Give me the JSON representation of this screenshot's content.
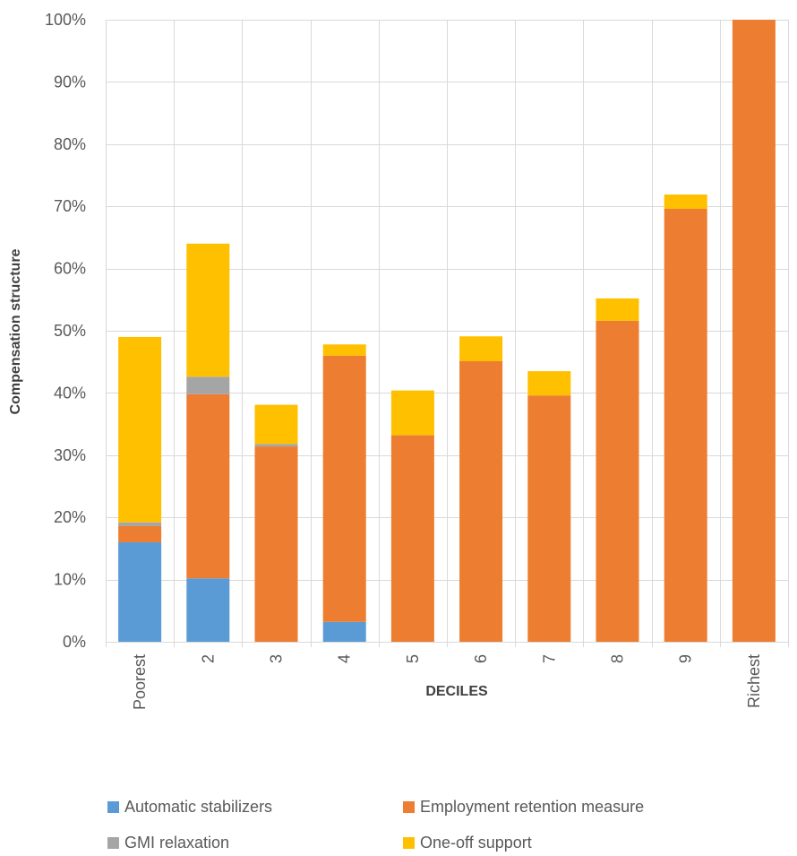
{
  "chart_data": {
    "type": "bar",
    "stacked": true,
    "title": "",
    "xlabel": "DECILES",
    "ylabel": "Compensation structure",
    "ylim": [
      0,
      100
    ],
    "y_ticks": [
      "0%",
      "10%",
      "20%",
      "30%",
      "40%",
      "50%",
      "60%",
      "70%",
      "80%",
      "90%",
      "100%"
    ],
    "categories": [
      "Poorest",
      "2",
      "3",
      "4",
      "5",
      "6",
      "7",
      "8",
      "9",
      "Richest"
    ],
    "grid": true,
    "legend_position": "bottom",
    "series": [
      {
        "name": "Automatic stabilizers",
        "color": "#5B9BD5",
        "values": [
          16.0,
          10.2,
          0,
          3.2,
          0,
          0,
          0,
          0,
          0,
          0
        ]
      },
      {
        "name": "Employment retention measure",
        "color": "#ED7D31",
        "values": [
          2.6,
          29.6,
          31.4,
          42.8,
          33.2,
          45.1,
          39.6,
          51.6,
          69.6,
          100.0
        ]
      },
      {
        "name": "GMI relaxation",
        "color": "#A5A5A5",
        "values": [
          0.6,
          2.8,
          0.4,
          0,
          0,
          0,
          0,
          0,
          0,
          0
        ]
      },
      {
        "name": "One-off support",
        "color": "#FFC000",
        "values": [
          29.8,
          21.4,
          6.3,
          1.8,
          7.2,
          4.0,
          3.9,
          3.6,
          2.3,
          0
        ]
      }
    ]
  }
}
